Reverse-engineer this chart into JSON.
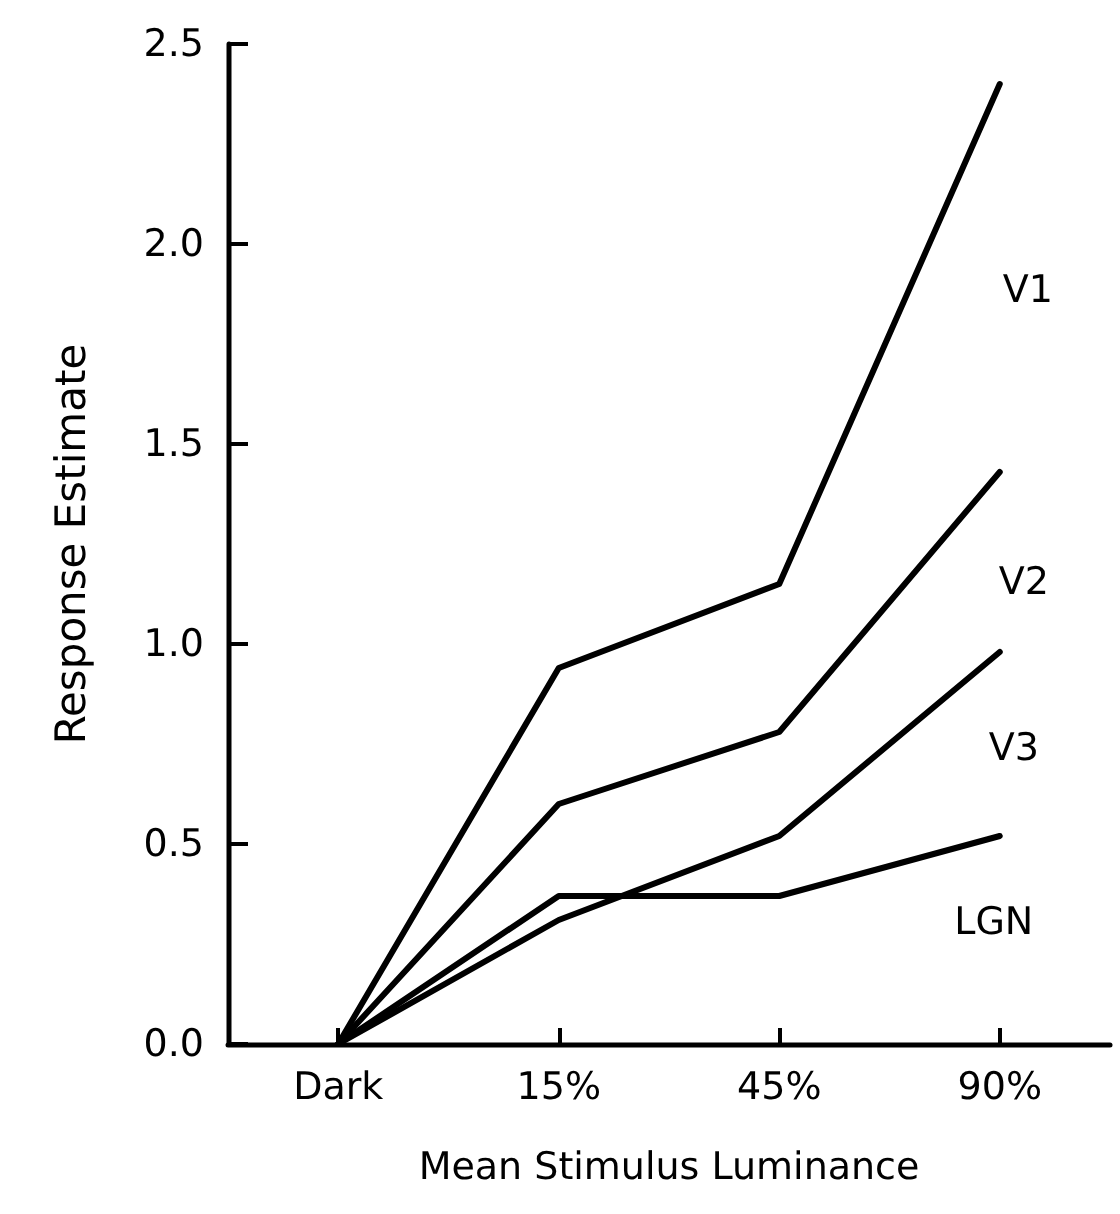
{
  "chart_data": {
    "type": "line",
    "xlabel": "Mean Stimulus Luminance",
    "ylabel": "Response Estimate",
    "categories": [
      "Dark",
      "15%",
      "45%",
      "90%"
    ],
    "series": [
      {
        "name": "V1",
        "color": "#000000",
        "values": [
          0,
          0.94,
          1.15,
          2.4
        ]
      },
      {
        "name": "V2",
        "color": "#000000",
        "values": [
          0,
          0.6,
          0.78,
          1.43
        ]
      },
      {
        "name": "V3",
        "color": "#000000",
        "values": [
          0,
          0.31,
          0.52,
          0.98
        ]
      },
      {
        "name": "LGN",
        "color": "#000000",
        "values": [
          0,
          0.37,
          0.37,
          0.52
        ]
      }
    ],
    "ylim": [
      0,
      2.5
    ],
    "yticks": [
      {
        "value": 0,
        "label": "0.0"
      },
      {
        "value": 0.5,
        "label": "0.5"
      },
      {
        "value": 1,
        "label": "1.0"
      },
      {
        "value": 1.5,
        "label": "1.5"
      },
      {
        "value": 2,
        "label": "2.0"
      },
      {
        "value": 2.5,
        "label": "2.5"
      }
    ],
    "grid": false,
    "legend": false,
    "marker": "none",
    "line_style": "solid"
  }
}
